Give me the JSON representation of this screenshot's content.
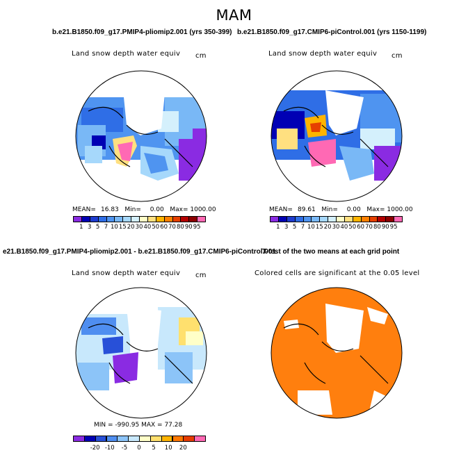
{
  "season": "MAM",
  "top_left_title": "b.e21.B1850.f09_g17.PMIP4-pliomip2.001 (yrs 350-399)",
  "top_right_title": "b.e21.B1850.f09_g17.CMIP6-piControl.001 (yrs 1150-1199)",
  "bottom_left_title": "e21.B1850.f09_g17.PMIP4-pliomip2.001 - b.e21.B1850.f09_g17.CMIP6-piControl.001",
  "bottom_right_title": "T-test of the two means at each grid point",
  "panels": {
    "top_left": {
      "variable": "Land snow depth water equiv",
      "units": "cm",
      "stats": {
        "mean_label": "MEAN=",
        "mean": "16.83",
        "min_label": "Min=",
        "min": "0.00",
        "max_label": "Max=",
        "max": "1000.00"
      }
    },
    "top_right": {
      "variable": "Land snow depth water equiv",
      "units": "cm",
      "stats": {
        "mean_label": "MEAN=",
        "mean": "89.61",
        "min_label": "Min=",
        "min": "0.00",
        "max_label": "Max=",
        "max": "1000.00"
      }
    },
    "bottom_left": {
      "variable": "Land snow depth water equiv",
      "units": "cm",
      "stats": {
        "min_label": "MIN =",
        "min": "-990.95",
        "max_label": "MAX =",
        "max": "77.28"
      }
    },
    "bottom_right": {
      "note": "Colored cells are significant at the 0.05 level"
    }
  },
  "colorbar_levels": {
    "labels": [
      "1",
      "3",
      "5",
      "7",
      "10",
      "15",
      "20",
      "30",
      "40",
      "50",
      "60",
      "70",
      "80",
      "90",
      "95"
    ],
    "colors": [
      "#8a2be2",
      "#0000b4",
      "#1e3ccf",
      "#2f6ee6",
      "#4f94f0",
      "#79b8f6",
      "#a6d8fb",
      "#d4f0fc",
      "#ffffc8",
      "#ffe080",
      "#ffb400",
      "#ff8000",
      "#e64000",
      "#b40000",
      "#8c0000",
      "#ff69b4"
    ]
  },
  "colorbar_diff": {
    "labels": [
      "-20",
      "-10",
      "-5",
      "0",
      "5",
      "10",
      "20"
    ],
    "colors": [
      "#8a2be2",
      "#0000b4",
      "#2850d8",
      "#4f8ef0",
      "#8cc4f8",
      "#c8e8fc",
      "#ffffc8",
      "#ffe06e",
      "#ffb400",
      "#ff7800",
      "#e63c00",
      "#ff69b4"
    ]
  },
  "colors": {
    "ttest_fill": "#ff7f0e"
  }
}
